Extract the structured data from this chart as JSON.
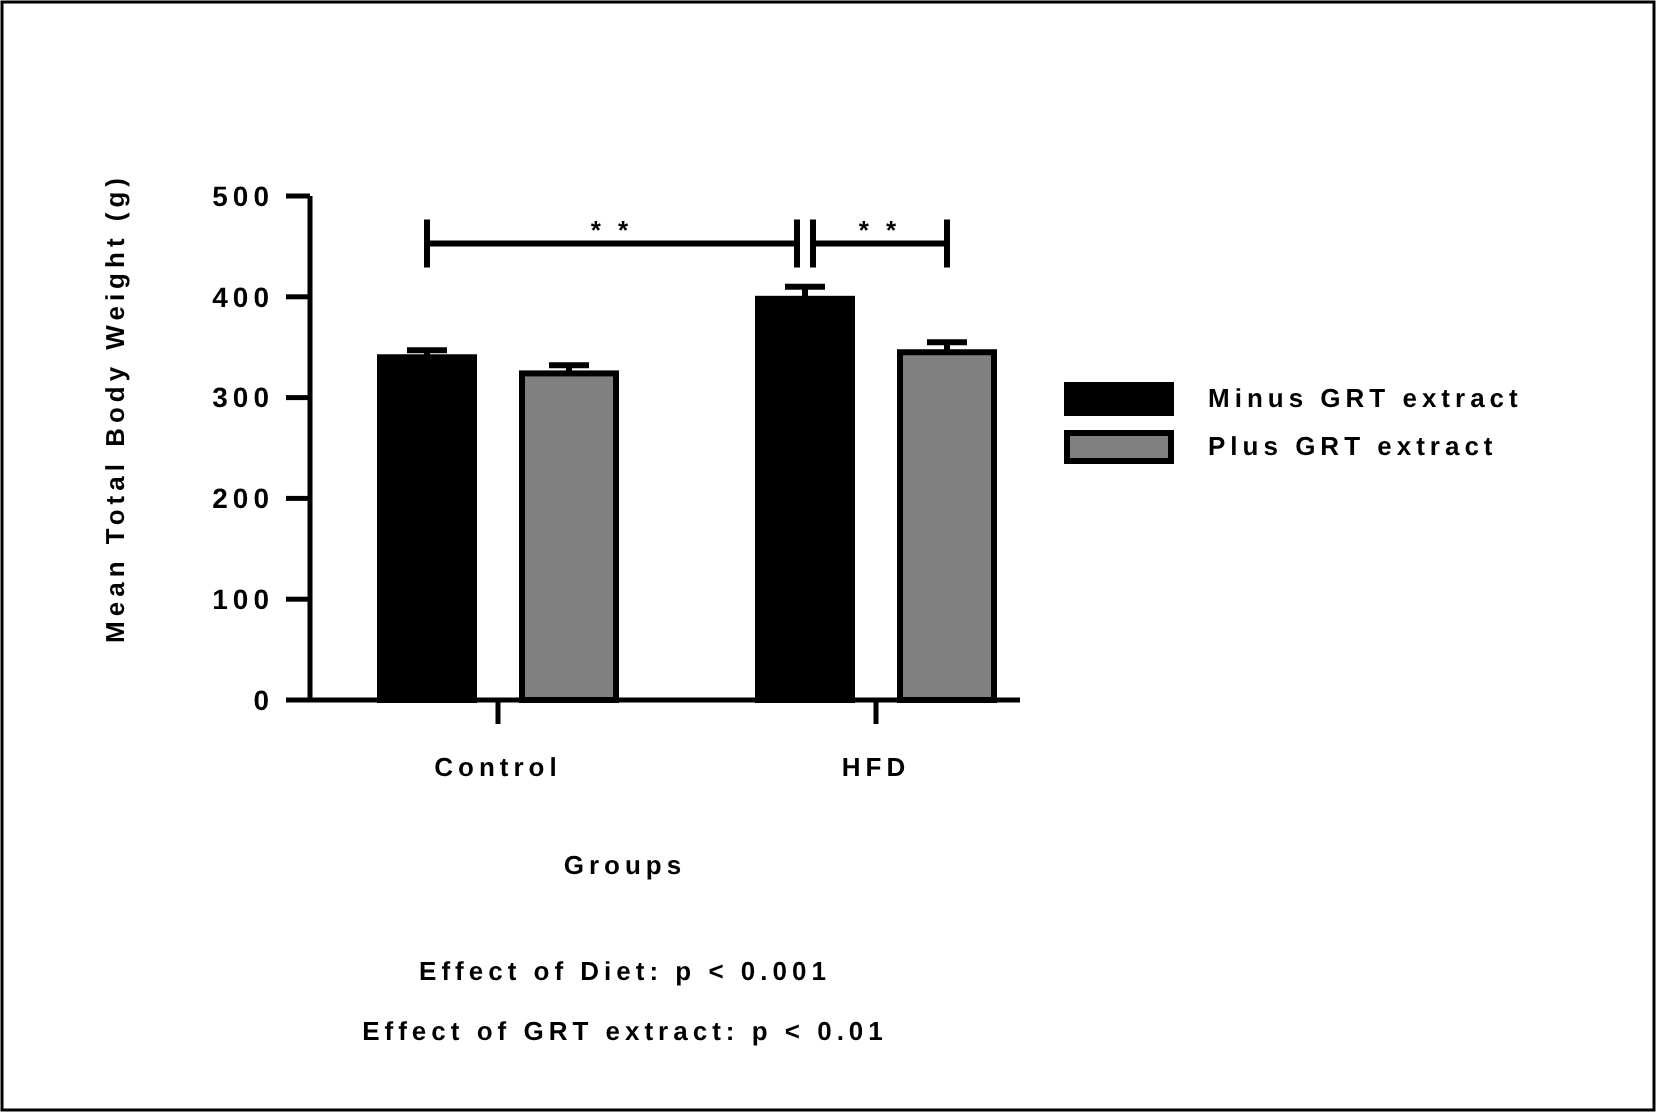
{
  "chart_data": {
    "type": "bar",
    "xlabel": "Groups",
    "ylabel": "Mean Total Body Weight (g)",
    "categories": [
      "Control",
      "HFD"
    ],
    "series": [
      {
        "name": "Minus GRT extract",
        "color": "#000000",
        "values": [
          340,
          398
        ],
        "errors": [
          7,
          12
        ]
      },
      {
        "name": "Plus GRT extract",
        "color": "#808080",
        "values": [
          324,
          345
        ],
        "errors": [
          8,
          10
        ]
      }
    ],
    "ylim": [
      0,
      500
    ],
    "yticks": [
      0,
      100,
      200,
      300,
      400,
      500
    ],
    "grid": false,
    "legend": "right",
    "annotations": [
      "* *",
      "* *",
      "Effect of Diet: p < 0.001",
      "Effect of GRT extract: p < 0.01"
    ]
  }
}
